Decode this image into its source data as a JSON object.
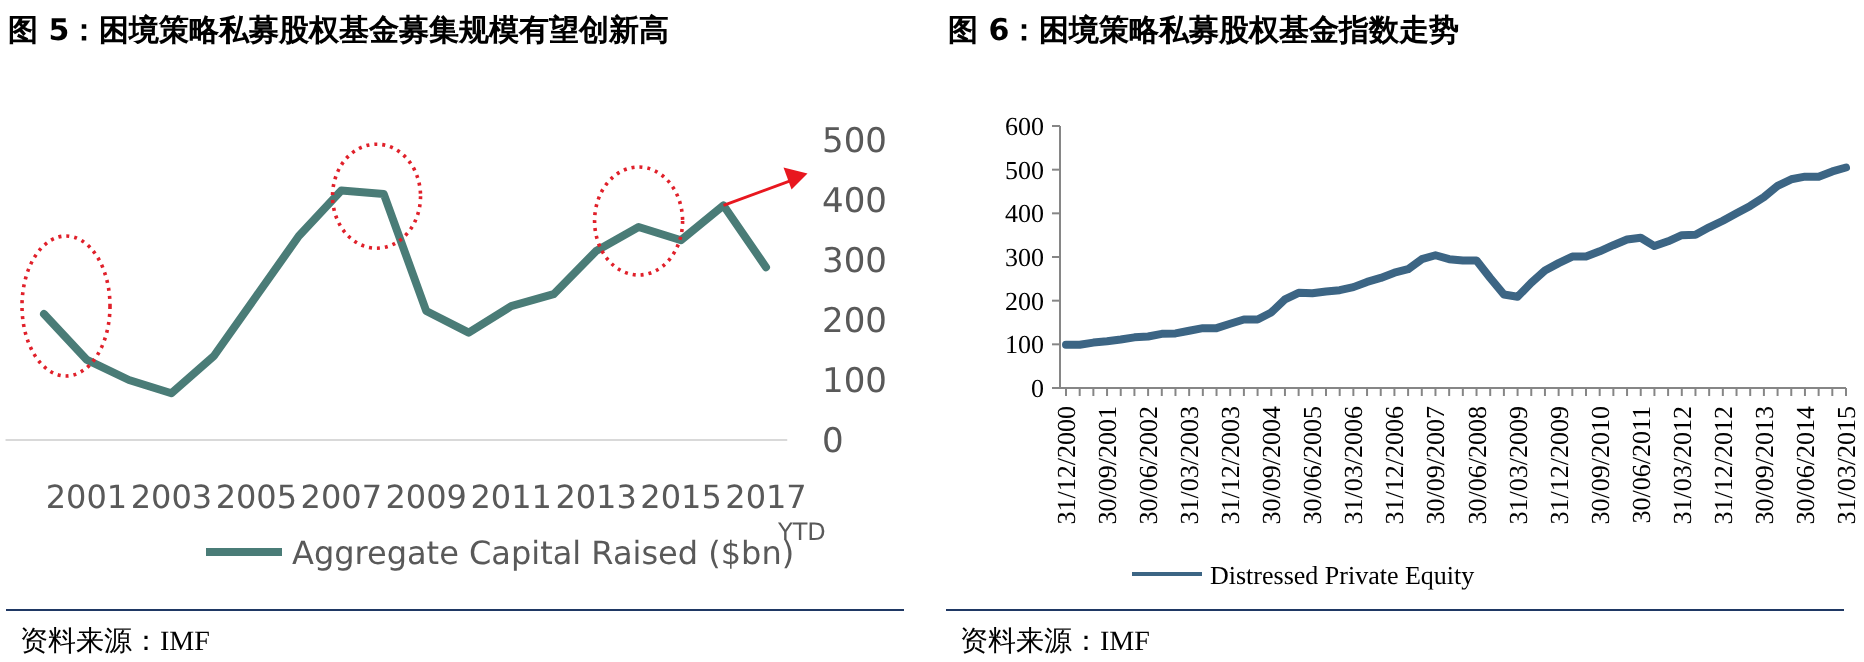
{
  "chart_data": [
    {
      "type": "line",
      "title": "图 5：困境策略私募股权基金募集规模有望创新高",
      "categories": [
        null,
        "2001",
        null,
        "2003",
        null,
        "2005",
        null,
        "2007",
        null,
        "2009",
        null,
        "2011",
        null,
        "2013",
        null,
        "2015",
        null,
        "2017"
      ],
      "series": [
        {
          "name": "Aggregate Capital Raised ($bn)",
          "color": "#4a7c77",
          "values": [
            210,
            134,
            100,
            78,
            140,
            240,
            340,
            416,
            410,
            215,
            179,
            223,
            243,
            315,
            355,
            333,
            391,
            288
          ]
        }
      ],
      "ylim": [
        0,
        500
      ],
      "yticks": [
        0,
        100,
        200,
        300,
        400,
        500
      ],
      "legend": "bottom",
      "annotations": [
        "YTD",
        "资料来源：IMF"
      ]
    },
    {
      "type": "line",
      "title": "图 6：困境策略私募股权基金指数走势",
      "categories": [
        "31/12/2000",
        null,
        null,
        "30/09/2001",
        null,
        null,
        "30/06/2002",
        null,
        null,
        "31/03/2003",
        null,
        null,
        "31/12/2003",
        null,
        null,
        "30/09/2004",
        null,
        null,
        "30/06/2005",
        null,
        null,
        "31/03/2006",
        null,
        null,
        "31/12/2006",
        null,
        null,
        "30/09/2007",
        null,
        null,
        "30/06/2008",
        null,
        null,
        "31/03/2009",
        null,
        null,
        "31/12/2009",
        null,
        null,
        "30/09/2010",
        null,
        null,
        "30/06/2011",
        null,
        null,
        "31/03/2012",
        null,
        null,
        "31/12/2012",
        null,
        null,
        "30/09/2013",
        null,
        null,
        "30/06/2014",
        null,
        null,
        "31/03/2015"
      ],
      "series": [
        {
          "name": "Distressed Private Equity",
          "color": "#3c6584",
          "values": [
            99,
            99,
            104,
            107,
            111,
            116,
            118,
            124,
            125,
            131,
            137,
            137,
            147,
            157,
            157,
            173,
            203,
            218,
            217,
            221,
            224,
            231,
            243,
            252,
            264,
            272,
            295,
            304,
            295,
            292,
            292,
            252,
            214,
            209,
            241,
            269,
            286,
            301,
            301,
            313,
            327,
            340,
            344,
            325,
            336,
            350,
            351,
            368,
            383,
            400,
            417,
            437,
            463,
            478,
            484,
            484,
            496,
            505
          ]
        }
      ],
      "ylim": [
        0,
        600
      ],
      "yticks": [
        0,
        100,
        200,
        300,
        400,
        500,
        600
      ],
      "legend": "bottom",
      "annotations": [
        "资料来源：IMF"
      ]
    }
  ]
}
